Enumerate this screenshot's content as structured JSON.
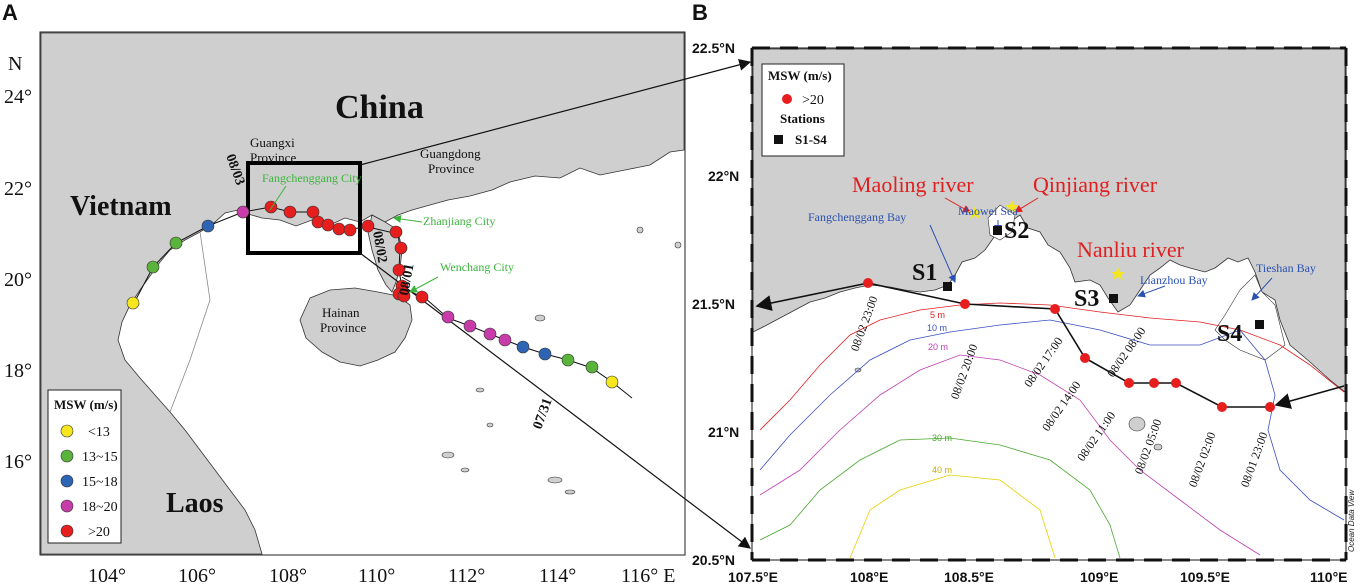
{
  "panel_a": {
    "letter": "A",
    "north_label": "N",
    "lat_ticks": [
      "24°",
      "22°",
      "20°",
      "18°",
      "16°"
    ],
    "lon_ticks": [
      "104°",
      "106°",
      "108°",
      "110°",
      "112°",
      "114°",
      "116° E"
    ],
    "labels": {
      "china": "China",
      "vietnam": "Vietnam",
      "laos": "Laos",
      "guangxi_1": "Guangxi",
      "guangxi_2": "Province",
      "guangdong_1": "Guangdong",
      "guangdong_2": "Province",
      "hainan_1": "Hainan",
      "hainan_2": "Province",
      "fangchenggang": "Fangchenggang City",
      "zhanjiang": "Zhanjiang City",
      "wenchang": "Wenchang City"
    },
    "track_dates": [
      "08/03",
      "08/02",
      "08/01",
      "07/31"
    ],
    "legend": {
      "title": "MSW (m/s)",
      "items": [
        {
          "label": "<13",
          "color": "#f5e61e"
        },
        {
          "label": "13~15",
          "color": "#5ab43c"
        },
        {
          "label": "15~18",
          "color": "#2d64b4"
        },
        {
          "label": "18~20",
          "color": "#c83caa"
        },
        {
          "label": ">20",
          "color": "#e61e1e"
        }
      ]
    },
    "track_points_msw_color": [
      "yellow",
      "green",
      "green",
      "blue",
      "magenta",
      "red",
      "red",
      "red",
      "red",
      "red",
      "red",
      "red",
      "red",
      "red",
      "red",
      "red",
      "red",
      "red",
      "red",
      "red",
      "red",
      "magenta",
      "magenta",
      "magenta",
      "blue",
      "blue",
      "green",
      "green",
      "yellow"
    ]
  },
  "panel_b": {
    "letter": "B",
    "lat_ticks": [
      "22.5°N",
      "22°N",
      "21.5°N",
      "21°N",
      "20.5°N"
    ],
    "lon_ticks": [
      "107.5°E",
      "108°E",
      "108.5°E",
      "109°E",
      "109.5°E",
      "110°E"
    ],
    "legend": {
      "title": "MSW (m/s)",
      "red_label": ">20",
      "stations_title": "Stations",
      "stations_label": "S1-S4"
    },
    "rivers": [
      "Maoling river",
      "Qinjiang river",
      "Nanliu river"
    ],
    "bays": [
      "Fangchenggang Bay",
      "Maowei Sea",
      "Lianzhou Bay",
      "Tieshan Bay"
    ],
    "stations": [
      "S1",
      "S2",
      "S3",
      "S4"
    ],
    "track_times": [
      "08/02 23:00",
      "08/02 20:00",
      "08/02 17:00",
      "08/02 14:00",
      "08/02 11:00",
      "08/02 08:00",
      "08/02 05:00",
      "08/02 02:00",
      "08/01 23:00"
    ],
    "isobaths": [
      "5 m",
      "10 m",
      "20 m",
      "30 m",
      "40 m"
    ],
    "credit": "Ocean Data View"
  }
}
